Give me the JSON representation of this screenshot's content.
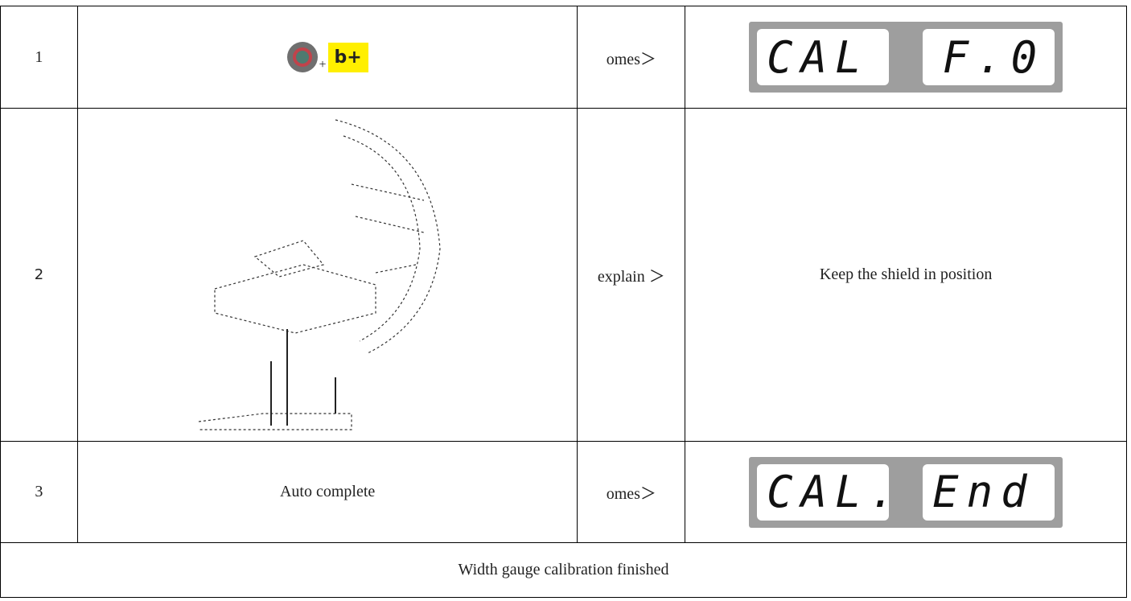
{
  "table": {
    "rows": [
      {
        "step": "1",
        "plus": "+",
        "key": "b+",
        "label": "omes＞",
        "display": [
          "CAL",
          "F.0"
        ]
      },
      {
        "step": "2",
        "label": "explain ＞",
        "result": "Keep the shield in position"
      },
      {
        "step": "3",
        "action": "Auto complete",
        "label": "omes＞",
        "display": [
          "CAL.",
          "End"
        ]
      }
    ],
    "footer": "Width gauge calibration finished"
  }
}
